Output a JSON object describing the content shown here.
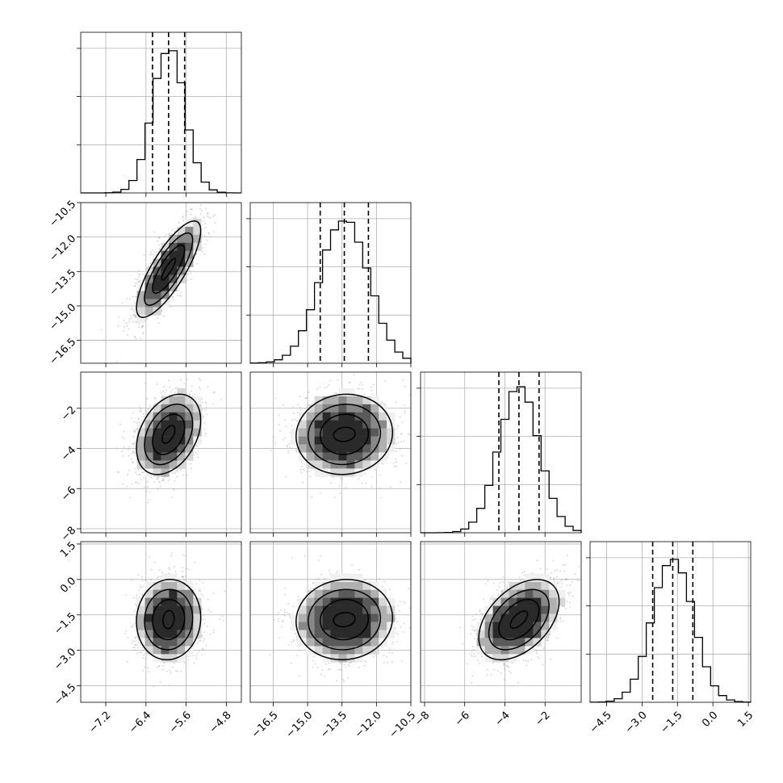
{
  "chart_data": {
    "type": "corner",
    "parameters": [
      {
        "mean": -5.95,
        "std": 0.32,
        "q16": -6.27,
        "q50": -5.95,
        "q84": -5.63,
        "range": [
          -7.7,
          -4.5
        ]
      },
      {
        "mean": -13.4,
        "std": 1.05,
        "q16": -14.45,
        "q50": -13.4,
        "q84": -12.35,
        "range": [
          -17.5,
          -10.5
        ]
      },
      {
        "mean": -3.3,
        "std": 1.0,
        "q16": -4.3,
        "q50": -3.3,
        "q84": -2.3,
        "range": [
          -8.2,
          -0.2
        ]
      },
      {
        "mean": -1.7,
        "std": 0.85,
        "q16": -2.55,
        "q50": -1.7,
        "q84": -0.85,
        "range": [
          -5.2,
          1.6
        ]
      }
    ],
    "correlations": {
      "0-1": 0.8,
      "0-2": 0.35,
      "0-3": 0.05,
      "1-2": 0.05,
      "1-3": 0.05,
      "2-3": 0.45
    },
    "x_tick_labels": [
      [
        "−7.2",
        "−6.4",
        "−5.6",
        "−4.8"
      ],
      [
        "−16.5",
        "−15.0",
        "−13.5",
        "−12.0",
        "−10.5"
      ],
      [
        "−8",
        "−6",
        "−4",
        "−2"
      ],
      [
        "−4.5",
        "−3.0",
        "−1.5",
        "0.0",
        "1.5"
      ]
    ],
    "x_tick_values": [
      [
        -7.2,
        -6.4,
        -5.6,
        -4.8
      ],
      [
        -16.5,
        -15.0,
        -13.5,
        -12.0,
        -10.5
      ],
      [
        -8,
        -6,
        -4,
        -2
      ],
      [
        -4.5,
        -3.0,
        -1.5,
        0.0,
        1.5
      ]
    ],
    "y_tick_labels": {
      "1": [
        "−10.5",
        "−12.0",
        "−13.5",
        "−15.0",
        "−16.5"
      ],
      "2": [
        "−2",
        "−4",
        "−6",
        "−8"
      ],
      "3": [
        "1.5",
        "0.0",
        "−1.5",
        "−3.0",
        "−4.5"
      ]
    },
    "y_tick_values": {
      "1": [
        -10.5,
        -12.0,
        -13.5,
        -15.0,
        -16.5
      ],
      "2": [
        -2,
        -4,
        -6,
        -8
      ],
      "3": [
        1.5,
        0.0,
        -1.5,
        -3.0,
        -4.5
      ]
    },
    "grid": true
  }
}
